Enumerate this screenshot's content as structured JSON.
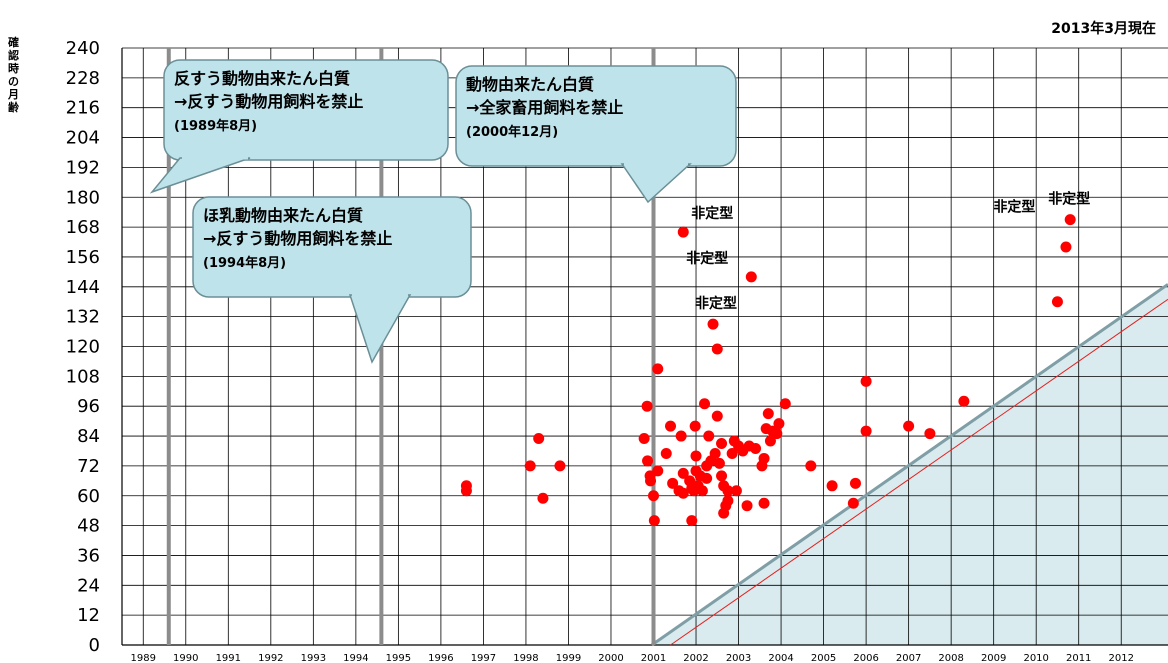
{
  "date_note": "2013年3月現在",
  "chart_data": {
    "type": "scatter",
    "title": "",
    "xlabel": "",
    "ylabel": "確認時の月齢",
    "xlim": [
      1988.5,
      2013.1
    ],
    "ylim": [
      0,
      240
    ],
    "yticks": [
      0,
      12,
      24,
      36,
      48,
      60,
      72,
      84,
      96,
      108,
      120,
      132,
      144,
      156,
      168,
      180,
      192,
      204,
      216,
      228,
      240
    ],
    "xticks": [
      1989,
      1990,
      1991,
      1992,
      1993,
      1994,
      1995,
      1996,
      1997,
      1998,
      1999,
      2000,
      2001,
      2002,
      2003,
      2004,
      2005,
      2006,
      2007,
      2008,
      2009,
      2010,
      2011,
      2012
    ],
    "grid": true,
    "x_unit": "year",
    "y_unit": "months",
    "ban_lines": [
      {
        "x": 1989.6,
        "lines": [
          "反すう動物由来たん白質",
          "→反すう動物用飼料を禁止",
          "(1989年8月)"
        ]
      },
      {
        "x": 1994.6,
        "lines": [
          "ほ乳動物由来たん白質",
          "→反すう動物用飼料を禁止",
          "(1994年8月)"
        ]
      },
      {
        "x": 2001.0,
        "lines": [
          "動物由来たん白質",
          "→全家畜用飼料を禁止",
          "(2000年12月)"
        ]
      }
    ],
    "atypical_label": "非定型",
    "atypical_cases": [
      [
        2001.7,
        166
      ],
      [
        2003.3,
        148
      ],
      [
        2002.4,
        129
      ],
      [
        2010.5,
        138
      ],
      [
        2010.7,
        160
      ],
      [
        2010.8,
        171
      ]
    ],
    "boundary_lines": [
      {
        "from": [
          2000.96,
          0
        ],
        "to": [
          2013.1,
          145
        ]
      },
      {
        "from": [
          2001.4,
          0
        ],
        "to": [
          2013.1,
          139
        ]
      }
    ],
    "points": [
      [
        1996.6,
        64
      ],
      [
        1996.6,
        62
      ],
      [
        1998.1,
        72
      ],
      [
        1998.3,
        83
      ],
      [
        1998.4,
        59
      ],
      [
        1998.8,
        72
      ],
      [
        2000.78,
        83
      ],
      [
        2000.85,
        96
      ],
      [
        2000.86,
        74
      ],
      [
        2000.92,
        68
      ],
      [
        2000.93,
        66
      ],
      [
        2001.0,
        60
      ],
      [
        2001.02,
        50
      ],
      [
        2001.1,
        111
      ],
      [
        2001.1,
        70
      ],
      [
        2001.3,
        77
      ],
      [
        2001.4,
        88
      ],
      [
        2001.45,
        65
      ],
      [
        2001.6,
        62
      ],
      [
        2001.65,
        84
      ],
      [
        2001.7,
        69
      ],
      [
        2001.7,
        61
      ],
      [
        2001.85,
        66
      ],
      [
        2001.9,
        50
      ],
      [
        2001.9,
        63
      ],
      [
        2001.95,
        62
      ],
      [
        2001.98,
        88
      ],
      [
        2002.0,
        76
      ],
      [
        2002.0,
        70
      ],
      [
        2002.05,
        64
      ],
      [
        2002.1,
        68
      ],
      [
        2002.15,
        62
      ],
      [
        2002.2,
        97
      ],
      [
        2002.25,
        72
      ],
      [
        2002.25,
        67
      ],
      [
        2002.3,
        84
      ],
      [
        2002.35,
        74
      ],
      [
        2002.45,
        77
      ],
      [
        2002.5,
        92
      ],
      [
        2002.55,
        73
      ],
      [
        2002.6,
        81
      ],
      [
        2002.6,
        68
      ],
      [
        2002.65,
        64
      ],
      [
        2002.65,
        53
      ],
      [
        2002.7,
        56
      ],
      [
        2002.75,
        58
      ],
      [
        2002.75,
        62
      ],
      [
        2002.85,
        77
      ],
      [
        2002.9,
        82
      ],
      [
        2002.95,
        62
      ],
      [
        2003.0,
        80
      ],
      [
        2003.1,
        78
      ],
      [
        2003.2,
        56
      ],
      [
        2003.25,
        80
      ],
      [
        2003.4,
        79
      ],
      [
        2003.55,
        72
      ],
      [
        2003.6,
        57
      ],
      [
        2003.6,
        75
      ],
      [
        2003.65,
        87
      ],
      [
        2003.7,
        93
      ],
      [
        2003.75,
        82
      ],
      [
        2003.8,
        86
      ],
      [
        2003.9,
        85
      ],
      [
        2003.95,
        89
      ],
      [
        2004.1,
        97
      ],
      [
        2002.5,
        119
      ],
      [
        2004.7,
        72
      ],
      [
        2005.2,
        64
      ],
      [
        2005.7,
        57
      ],
      [
        2005.75,
        65
      ],
      [
        2006.0,
        106
      ],
      [
        2006.0,
        86
      ],
      [
        2007.0,
        88
      ],
      [
        2007.5,
        85
      ],
      [
        2008.3,
        98
      ]
    ]
  }
}
